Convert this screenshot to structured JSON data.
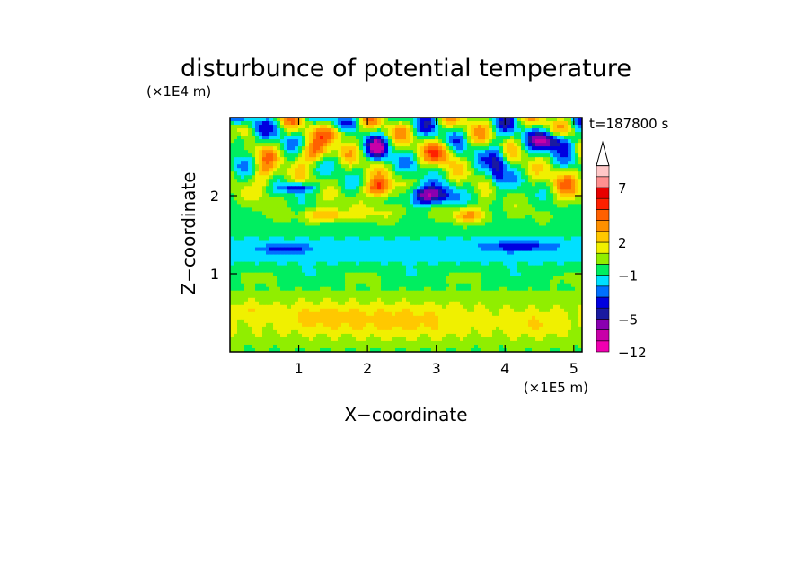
{
  "chart_data": {
    "type": "heatmap",
    "title": "disturbunce of potential temperature",
    "xlabel": "X−coordinate",
    "ylabel": "Z−coordinate",
    "x_unit": "(×1E5 m)",
    "y_unit": "(×1E4 m)",
    "time_label": "t=187800 s",
    "xlim": [
      0,
      5.12
    ],
    "ylim": [
      0,
      3.0
    ],
    "x_ticks": [
      1,
      2,
      3,
      4,
      5
    ],
    "y_ticks": [
      1,
      2
    ],
    "x_tick_labels": [
      "1",
      "2",
      "3",
      "4",
      "5"
    ],
    "y_tick_labels": [
      "1",
      "2"
    ],
    "colorbar": {
      "labels": [
        {
          "value": 7,
          "text": "7"
        },
        {
          "value": 2,
          "text": "2"
        },
        {
          "value": -1,
          "text": "−1"
        },
        {
          "value": -5,
          "text": "−5"
        },
        {
          "value": -12,
          "text": "−12"
        }
      ],
      "colors_bottom_to_top": [
        "#f000b0",
        "#c800a8",
        "#8a00b0",
        "#1a1aa0",
        "#0000e0",
        "#0070ff",
        "#00e0ff",
        "#00ee60",
        "#90ee00",
        "#f0f000",
        "#ffc800",
        "#ff9000",
        "#ff6000",
        "#ff2000",
        "#e80000",
        "#ff9090",
        "#ffc8c8"
      ],
      "extend_top": true
    },
    "levels": [
      -9,
      -6,
      -5,
      -4,
      -3,
      -2,
      -1,
      0,
      1,
      2,
      3,
      4,
      5,
      6,
      7,
      8,
      9
    ],
    "features": [
      {
        "x": 0.3,
        "z": 0.55,
        "amp": 0.9,
        "sx": 0.25,
        "sz": 0.12
      },
      {
        "x": 1.3,
        "z": 0.45,
        "amp": 1.3,
        "sx": 0.6,
        "sz": 0.18
      },
      {
        "x": 2.5,
        "z": 0.4,
        "amp": 1.5,
        "sx": 0.9,
        "sz": 0.2
      },
      {
        "x": 4.4,
        "z": 0.35,
        "amp": 1.0,
        "sx": 0.45,
        "sz": 0.15
      },
      {
        "x": 0.8,
        "z": 1.32,
        "amp": -2.5,
        "sx": 0.35,
        "sz": 0.06
      },
      {
        "x": 4.2,
        "z": 1.35,
        "amp": -2.3,
        "sx": 0.5,
        "sz": 0.07
      },
      {
        "x": 2.2,
        "z": 1.8,
        "amp": 1.4,
        "sx": 0.35,
        "sz": 0.12
      },
      {
        "x": 1.2,
        "z": 2.55,
        "amp": 4.5,
        "sx": 0.22,
        "sz": 0.15
      },
      {
        "x": 2.15,
        "z": 2.1,
        "amp": 5.0,
        "sx": 0.2,
        "sz": 0.13
      },
      {
        "x": 2.15,
        "z": 2.6,
        "amp": -5.0,
        "sx": 0.14,
        "sz": 0.14
      },
      {
        "x": 2.9,
        "z": 2.0,
        "amp": -6.0,
        "sx": 0.32,
        "sz": 0.12
      },
      {
        "x": 3.05,
        "z": 2.55,
        "amp": 3.5,
        "sx": 0.2,
        "sz": 0.15
      },
      {
        "x": 3.5,
        "z": 1.75,
        "amp": 3.5,
        "sx": 0.25,
        "sz": 0.1
      },
      {
        "x": 0.15,
        "z": 2.7,
        "amp": -4.5,
        "sx": 0.12,
        "sz": 0.12
      },
      {
        "x": 0.5,
        "z": 2.3,
        "amp": 3.0,
        "sx": 0.15,
        "sz": 0.25
      },
      {
        "x": 1.0,
        "z": 2.1,
        "amp": -4.0,
        "sx": 0.25,
        "sz": 0.06
      },
      {
        "x": 1.4,
        "z": 1.75,
        "amp": 3.5,
        "sx": 0.3,
        "sz": 0.08
      },
      {
        "x": 4.7,
        "z": 2.7,
        "amp": -5.5,
        "sx": 0.28,
        "sz": 0.12
      },
      {
        "x": 4.9,
        "z": 2.15,
        "amp": 3.0,
        "sx": 0.2,
        "sz": 0.2
      },
      {
        "x": 3.9,
        "z": 2.4,
        "amp": -4.0,
        "sx": 0.12,
        "sz": 0.3
      },
      {
        "x": 1.6,
        "z": 2.8,
        "amp": 3.0,
        "sx": 0.25,
        "sz": 0.1
      }
    ]
  }
}
